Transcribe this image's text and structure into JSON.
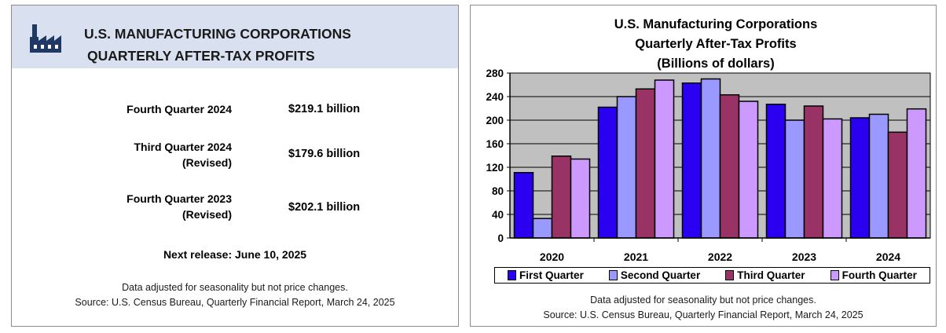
{
  "summary": {
    "title_line1": "U.S. MANUFACTURING CORPORATIONS",
    "title_line2": "QUARTERLY AFTER-TAX PROFITS",
    "icon": "factory-icon",
    "rows": [
      {
        "label_line1": "Fourth Quarter 2024",
        "label_line2": "",
        "value": "$219.1 billion"
      },
      {
        "label_line1": "Third Quarter 2024",
        "label_line2": "(Revised)",
        "value": "$179.6 billion"
      },
      {
        "label_line1": "Fourth Quarter 2023",
        "label_line2": "(Revised)",
        "value": "$202.1 billion"
      }
    ],
    "next_release": "Next release: June 10, 2025",
    "note_line1": "Data adjusted for seasonality but not price changes.",
    "note_line2": "Source: U.S. Census Bureau, Quarterly Financial Report, March 24, 2025"
  },
  "colors": {
    "header_bg": "#d9e1f0",
    "icon": "#1f3864",
    "q1": "#2b00f0",
    "q2": "#9999ff",
    "q3": "#993366",
    "q4": "#cc99ff",
    "plot_bg": "#c0c0c0"
  },
  "chart_data": {
    "type": "bar",
    "title_line1": "U.S. Manufacturing Corporations",
    "title_line2": "Quarterly After-Tax Profits",
    "title_line3": "(Billions of dollars)",
    "categories": [
      "2020",
      "2021",
      "2022",
      "2023",
      "2024"
    ],
    "series": [
      {
        "name": "First Quarter",
        "values": [
          111,
          222,
          263,
          227,
          204
        ]
      },
      {
        "name": "Second Quarter",
        "values": [
          33,
          240,
          270,
          200,
          210
        ]
      },
      {
        "name": "Third Quarter",
        "values": [
          139,
          253,
          243,
          224,
          179.6
        ]
      },
      {
        "name": "Fourth Quarter",
        "values": [
          134,
          268,
          232,
          202.1,
          219.1
        ]
      }
    ],
    "ylim": [
      0,
      280
    ],
    "yticks": [
      0,
      40,
      80,
      120,
      160,
      200,
      240,
      280
    ],
    "xlabel": "",
    "ylabel": "",
    "grid": true,
    "legend": "bottom",
    "note_line1": "Data adjusted for seasonality but not price changes.",
    "note_line2": "Source: U.S. Census Bureau, Quarterly Financial Report, March 24, 2025"
  }
}
